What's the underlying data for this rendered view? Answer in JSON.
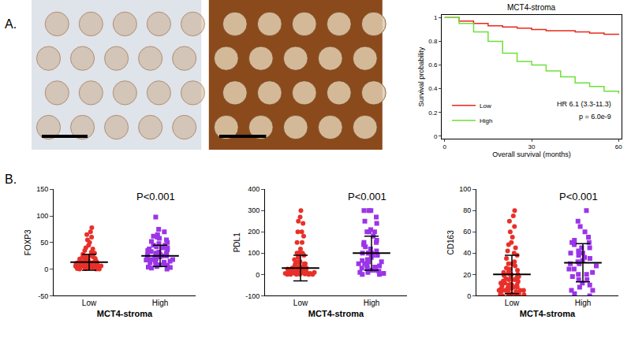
{
  "panel_labels": [
    "A.",
    "B."
  ],
  "chart_data": [
    {
      "type": "line",
      "title": "MCT4-stroma",
      "x_label": "Overall survival (months)",
      "y_label": "Survival probability",
      "x": [
        0,
        5,
        10,
        15,
        20,
        25,
        30,
        35,
        40,
        45,
        50,
        55,
        60
      ],
      "series": [
        {
          "name": "Low",
          "color": "#e8291c",
          "values": [
            1,
            0.97,
            0.95,
            0.93,
            0.92,
            0.91,
            0.9,
            0.89,
            0.89,
            0.88,
            0.87,
            0.86,
            0.855
          ]
        },
        {
          "name": "High",
          "color": "#6ee03a",
          "values": [
            1,
            0.95,
            0.88,
            0.8,
            0.7,
            0.63,
            0.6,
            0.55,
            0.5,
            0.45,
            0.42,
            0.38,
            0.36
          ]
        }
      ],
      "line_style": "step",
      "legend": "lower left",
      "annotations": [
        "HR 6.1 (3.3-11.3)",
        "p = 6.0e-9"
      ],
      "xlim": [
        -1,
        61
      ],
      "xticks": [
        0,
        30,
        60
      ],
      "ylim": [
        -0.02,
        1.02
      ],
      "yticks": [
        0,
        0.2,
        0.4,
        0.6,
        0.8,
        1
      ],
      "grid": false
    },
    {
      "type": "scatter",
      "x_label": "MCT4-stroma",
      "y_label": "FOXP3",
      "categories": [
        "Low",
        "High"
      ],
      "groups": [
        {
          "category": "Low",
          "color": "#e8302a",
          "marker": "circle",
          "mean": 13,
          "sd": 15,
          "values": [
            0,
            0,
            1,
            2,
            2,
            3,
            3,
            4,
            4,
            5,
            5,
            5,
            6,
            6,
            7,
            7,
            8,
            8,
            8,
            9,
            9,
            10,
            10,
            10,
            11,
            11,
            12,
            12,
            13,
            13,
            14,
            14,
            15,
            15,
            16,
            17,
            18,
            19,
            20,
            20,
            21,
            22,
            23,
            24,
            25,
            26,
            28,
            30,
            32,
            35,
            38,
            40,
            45,
            50,
            55,
            60,
            65,
            70,
            78,
            0,
            1,
            3,
            6,
            9,
            12
          ]
        },
        {
          "category": "High",
          "color": "#9b35e8",
          "marker": "square",
          "mean": 25,
          "sd": 20,
          "values": [
            0,
            2,
            4,
            5,
            7,
            8,
            10,
            12,
            13,
            15,
            15,
            17,
            18,
            20,
            20,
            22,
            23,
            25,
            25,
            27,
            28,
            30,
            30,
            32,
            33,
            35,
            36,
            38,
            40,
            40,
            42,
            45,
            45,
            48,
            50,
            52,
            55,
            58,
            60,
            62,
            65,
            70,
            75,
            98,
            3,
            10,
            18,
            26
          ]
        }
      ],
      "annotations": [
        "P<0.001"
      ],
      "ylim": [
        -50,
        150
      ],
      "yticks": [
        -50,
        0,
        50,
        100,
        150
      ],
      "grid": false
    },
    {
      "type": "scatter",
      "x_label": "MCT4-stroma",
      "y_label": "PDL1",
      "categories": [
        "Low",
        "High"
      ],
      "groups": [
        {
          "category": "Low",
          "color": "#e8302a",
          "marker": "circle",
          "mean": 30,
          "sd": 60,
          "values": [
            0,
            0,
            0,
            0,
            0,
            1,
            2,
            3,
            5,
            5,
            5,
            5,
            10,
            10,
            10,
            10,
            10,
            15,
            15,
            20,
            20,
            20,
            20,
            25,
            30,
            30,
            30,
            30,
            40,
            40,
            40,
            50,
            50,
            50,
            60,
            60,
            70,
            80,
            90,
            100,
            100,
            100,
            100,
            120,
            150,
            150,
            180,
            200,
            200,
            240,
            250,
            270,
            300,
            0,
            5,
            10,
            20,
            30,
            15,
            5
          ]
        },
        {
          "category": "High",
          "color": "#9b35e8",
          "marker": "square",
          "mean": 100,
          "sd": 80,
          "values": [
            0,
            5,
            10,
            10,
            20,
            20,
            30,
            30,
            40,
            40,
            50,
            50,
            60,
            60,
            70,
            80,
            90,
            100,
            100,
            100,
            100,
            110,
            120,
            130,
            150,
            150,
            160,
            180,
            200,
            200,
            200,
            210,
            240,
            250,
            270,
            300,
            300,
            300,
            0,
            15,
            35,
            65,
            90,
            140
          ]
        }
      ],
      "annotations": [
        "P<0.001"
      ],
      "ylim": [
        -100,
        400
      ],
      "yticks": [
        -100,
        0,
        100,
        200,
        300,
        400
      ],
      "grid": false
    },
    {
      "type": "scatter",
      "x_label": "MCT4-stroma",
      "y_label": "CD163",
      "categories": [
        "Low",
        "High"
      ],
      "groups": [
        {
          "category": "Low",
          "color": "#e8302a",
          "marker": "circle",
          "mean": 20,
          "sd": 18,
          "values": [
            0,
            0,
            1,
            1,
            2,
            2,
            2,
            3,
            3,
            4,
            4,
            5,
            5,
            5,
            6,
            6,
            7,
            7,
            8,
            8,
            9,
            10,
            10,
            10,
            11,
            12,
            12,
            13,
            14,
            15,
            15,
            16,
            17,
            18,
            18,
            20,
            20,
            21,
            22,
            23,
            24,
            25,
            26,
            28,
            30,
            30,
            32,
            35,
            38,
            40,
            42,
            45,
            48,
            50,
            55,
            60,
            65,
            70,
            75,
            80,
            2,
            5,
            9,
            14,
            19
          ]
        },
        {
          "category": "High",
          "color": "#9b35e8",
          "marker": "square",
          "mean": 31,
          "sd": 18,
          "values": [
            0,
            2,
            5,
            8,
            10,
            12,
            15,
            18,
            20,
            20,
            22,
            25,
            28,
            30,
            30,
            32,
            35,
            36,
            38,
            40,
            40,
            42,
            45,
            48,
            50,
            50,
            52,
            55,
            60,
            65,
            70,
            80,
            5,
            15,
            25,
            33,
            45
          ]
        }
      ],
      "annotations": [
        "P<0.001"
      ],
      "ylim": [
        0,
        100
      ],
      "yticks": [
        0,
        20,
        40,
        60,
        80,
        100
      ],
      "grid": false
    }
  ]
}
